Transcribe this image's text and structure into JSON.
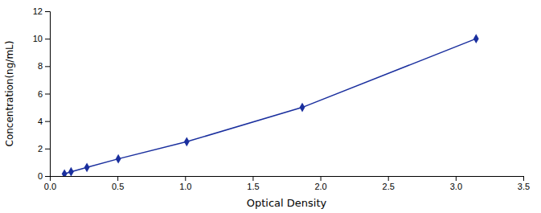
{
  "chart_data": {
    "type": "line",
    "x_label": "Optical Density",
    "y_label": "Concentration(ng/mL)",
    "x": [
      0.108,
      0.157,
      0.274,
      0.506,
      1.012,
      1.866,
      3.151
    ],
    "values": [
      0.156,
      0.312,
      0.625,
      1.25,
      2.5,
      5.0,
      10.0
    ],
    "color": "#1a2f9e",
    "marker": "diamond",
    "line_style": "solid",
    "xlim": [
      0,
      3.5
    ],
    "ylim": [
      0,
      12
    ],
    "xticks": [
      {
        "value": 0,
        "label": "0.0"
      },
      0.5,
      {
        "value": 1.0,
        "label": "1.0"
      },
      1.5,
      {
        "value": 2.0,
        "label": "2.0"
      },
      2.5,
      {
        "value": 3.0,
        "label": "3.0"
      },
      3.5
    ],
    "yticks": [
      0,
      2,
      4,
      6,
      8,
      10,
      12
    ],
    "grid": false
  }
}
